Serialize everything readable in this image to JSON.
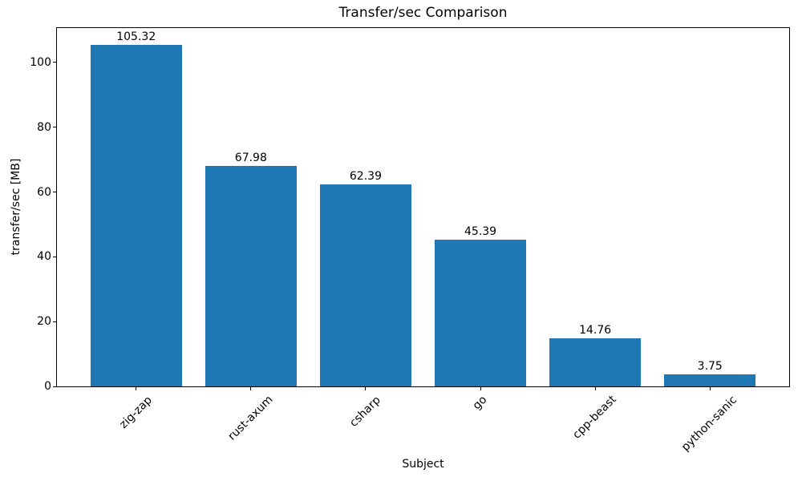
{
  "chart_data": {
    "type": "bar",
    "title": "Transfer/sec Comparison",
    "xlabel": "Subject",
    "ylabel": "transfer/sec [MB]",
    "categories": [
      "zig-zap",
      "rust-axum",
      "csharp",
      "go",
      "cpp-beast",
      "python-sanic"
    ],
    "values": [
      105.32,
      67.98,
      62.39,
      45.39,
      14.76,
      3.75
    ],
    "value_labels": [
      "105.32",
      "67.98",
      "62.39",
      "45.39",
      "14.76",
      "3.75"
    ],
    "yticks": [
      0,
      20,
      40,
      60,
      80,
      100
    ],
    "ylim": [
      0,
      110.6
    ],
    "x_tick_rotation": 45,
    "bar_color": "#1f77b4",
    "text_color": "#000000",
    "grid": "off",
    "legend": "none"
  }
}
